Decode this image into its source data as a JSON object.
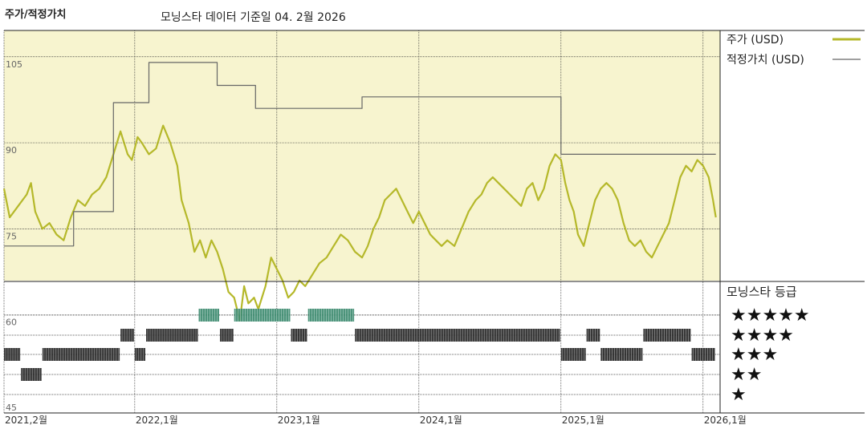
{
  "chart_data": {
    "type": "line",
    "title": "주가/적정가치",
    "subtitle": "모닝스타 데이터 기준일 04. 2월 2026",
    "y_ticks": [
      "105",
      "90",
      "75",
      "60",
      "45"
    ],
    "ylim": [
      45,
      110
    ],
    "x_ticks": [
      {
        "label": "2021,2월",
        "t": 2021.08
      },
      {
        "label": "2022,1월",
        "t": 2022.0
      },
      {
        "label": "2023,1월",
        "t": 2023.0
      },
      {
        "label": "2024,1월",
        "t": 2024.0
      },
      {
        "label": "2025,1월",
        "t": 2025.0
      },
      {
        "label": "2026,1월",
        "t": 2026.0
      }
    ],
    "xlim": [
      2021.08,
      2026.12
    ],
    "grid": true,
    "legend_position": "right",
    "series": [
      {
        "name": "주가 (USD)",
        "color": "#b5b82a",
        "points": [
          [
            2021.08,
            82
          ],
          [
            2021.12,
            77
          ],
          [
            2021.18,
            79
          ],
          [
            2021.24,
            81
          ],
          [
            2021.27,
            83
          ],
          [
            2021.3,
            78
          ],
          [
            2021.35,
            75
          ],
          [
            2021.4,
            76
          ],
          [
            2021.45,
            74
          ],
          [
            2021.5,
            73
          ],
          [
            2021.55,
            77
          ],
          [
            2021.6,
            80
          ],
          [
            2021.65,
            79
          ],
          [
            2021.7,
            81
          ],
          [
            2021.75,
            82
          ],
          [
            2021.8,
            84
          ],
          [
            2021.85,
            88
          ],
          [
            2021.9,
            92
          ],
          [
            2021.95,
            88
          ],
          [
            2021.98,
            87
          ],
          [
            2022.02,
            91
          ],
          [
            2022.05,
            90
          ],
          [
            2022.1,
            88
          ],
          [
            2022.15,
            89
          ],
          [
            2022.2,
            93
          ],
          [
            2022.25,
            90
          ],
          [
            2022.3,
            86
          ],
          [
            2022.33,
            80
          ],
          [
            2022.38,
            76
          ],
          [
            2022.42,
            71
          ],
          [
            2022.46,
            73
          ],
          [
            2022.5,
            70
          ],
          [
            2022.54,
            73
          ],
          [
            2022.58,
            71
          ],
          [
            2022.62,
            68
          ],
          [
            2022.66,
            64
          ],
          [
            2022.7,
            63
          ],
          [
            2022.74,
            59
          ],
          [
            2022.77,
            65
          ],
          [
            2022.8,
            62
          ],
          [
            2022.84,
            63
          ],
          [
            2022.87,
            61
          ],
          [
            2022.92,
            65
          ],
          [
            2022.96,
            70
          ],
          [
            2023.0,
            68
          ],
          [
            2023.04,
            66
          ],
          [
            2023.08,
            63
          ],
          [
            2023.12,
            64
          ],
          [
            2023.16,
            66
          ],
          [
            2023.2,
            65
          ],
          [
            2023.25,
            67
          ],
          [
            2023.3,
            69
          ],
          [
            2023.35,
            70
          ],
          [
            2023.4,
            72
          ],
          [
            2023.45,
            74
          ],
          [
            2023.5,
            73
          ],
          [
            2023.55,
            71
          ],
          [
            2023.6,
            70
          ],
          [
            2023.64,
            72
          ],
          [
            2023.68,
            75
          ],
          [
            2023.72,
            77
          ],
          [
            2023.76,
            80
          ],
          [
            2023.8,
            81
          ],
          [
            2023.84,
            82
          ],
          [
            2023.88,
            80
          ],
          [
            2023.92,
            78
          ],
          [
            2023.96,
            76
          ],
          [
            2024.0,
            78
          ],
          [
            2024.04,
            76
          ],
          [
            2024.08,
            74
          ],
          [
            2024.12,
            73
          ],
          [
            2024.16,
            72
          ],
          [
            2024.2,
            73
          ],
          [
            2024.25,
            72
          ],
          [
            2024.3,
            75
          ],
          [
            2024.35,
            78
          ],
          [
            2024.4,
            80
          ],
          [
            2024.44,
            81
          ],
          [
            2024.48,
            83
          ],
          [
            2024.52,
            84
          ],
          [
            2024.56,
            83
          ],
          [
            2024.6,
            82
          ],
          [
            2024.64,
            81
          ],
          [
            2024.68,
            80
          ],
          [
            2024.72,
            79
          ],
          [
            2024.76,
            82
          ],
          [
            2024.8,
            83
          ],
          [
            2024.84,
            80
          ],
          [
            2024.88,
            82
          ],
          [
            2024.92,
            86
          ],
          [
            2024.96,
            88
          ],
          [
            2025.0,
            87
          ],
          [
            2025.03,
            83
          ],
          [
            2025.06,
            80
          ],
          [
            2025.09,
            78
          ],
          [
            2025.12,
            74
          ],
          [
            2025.16,
            72
          ],
          [
            2025.2,
            76
          ],
          [
            2025.24,
            80
          ],
          [
            2025.28,
            82
          ],
          [
            2025.32,
            83
          ],
          [
            2025.36,
            82
          ],
          [
            2025.4,
            80
          ],
          [
            2025.44,
            76
          ],
          [
            2025.48,
            73
          ],
          [
            2025.52,
            72
          ],
          [
            2025.56,
            73
          ],
          [
            2025.6,
            71
          ],
          [
            2025.64,
            70
          ],
          [
            2025.68,
            72
          ],
          [
            2025.72,
            74
          ],
          [
            2025.76,
            76
          ],
          [
            2025.8,
            80
          ],
          [
            2025.84,
            84
          ],
          [
            2025.88,
            86
          ],
          [
            2025.92,
            85
          ],
          [
            2025.96,
            87
          ],
          [
            2026.0,
            86
          ],
          [
            2026.04,
            84
          ],
          [
            2026.07,
            80
          ],
          [
            2026.09,
            77
          ]
        ]
      },
      {
        "name": "적정가치 (USD)",
        "color": "#666666",
        "points": [
          [
            2021.08,
            72
          ],
          [
            2021.57,
            72
          ],
          [
            2021.57,
            78
          ],
          [
            2021.85,
            78
          ],
          [
            2021.85,
            97
          ],
          [
            2022.1,
            97
          ],
          [
            2022.1,
            104
          ],
          [
            2022.58,
            104
          ],
          [
            2022.58,
            100
          ],
          [
            2022.85,
            100
          ],
          [
            2022.85,
            96
          ],
          [
            2023.6,
            96
          ],
          [
            2023.6,
            98
          ],
          [
            2025.0,
            98
          ],
          [
            2025.0,
            88
          ],
          [
            2026.09,
            88
          ]
        ]
      }
    ],
    "rating_legend_title": "모닝스타 등급",
    "ratings": {
      "levels": [
        "★★★★★",
        "★★★★",
        "★★★",
        "★★",
        "★"
      ],
      "periods": [
        {
          "stars": 3,
          "start": 2021.08,
          "end": 2021.2
        },
        {
          "stars": 2,
          "start": 2021.2,
          "end": 2021.35
        },
        {
          "stars": 3,
          "start": 2021.35,
          "end": 2021.9
        },
        {
          "stars": 4,
          "start": 2021.9,
          "end": 2022.0
        },
        {
          "stars": 3,
          "start": 2022.0,
          "end": 2022.08
        },
        {
          "stars": 4,
          "start": 2022.08,
          "end": 2022.45
        },
        {
          "stars": 5,
          "start": 2022.45,
          "end": 2022.6
        },
        {
          "stars": 4,
          "start": 2022.6,
          "end": 2022.7
        },
        {
          "stars": 5,
          "start": 2022.7,
          "end": 2023.1
        },
        {
          "stars": 4,
          "start": 2023.1,
          "end": 2023.22
        },
        {
          "stars": 5,
          "start": 2023.22,
          "end": 2023.55
        },
        {
          "stars": 4,
          "start": 2023.55,
          "end": 2025.0
        },
        {
          "stars": 3,
          "start": 2025.0,
          "end": 2025.18
        },
        {
          "stars": 4,
          "start": 2025.18,
          "end": 2025.28
        },
        {
          "stars": 3,
          "start": 2025.28,
          "end": 2025.58
        },
        {
          "stars": 4,
          "start": 2025.58,
          "end": 2025.92
        },
        {
          "stars": 3,
          "start": 2025.92,
          "end": 2026.09
        }
      ]
    }
  },
  "colors": {
    "price_bg": "#f7f4cf",
    "grid": "#333333",
    "rating_5": "#3b8a6e",
    "rating_other": "#222222"
  }
}
